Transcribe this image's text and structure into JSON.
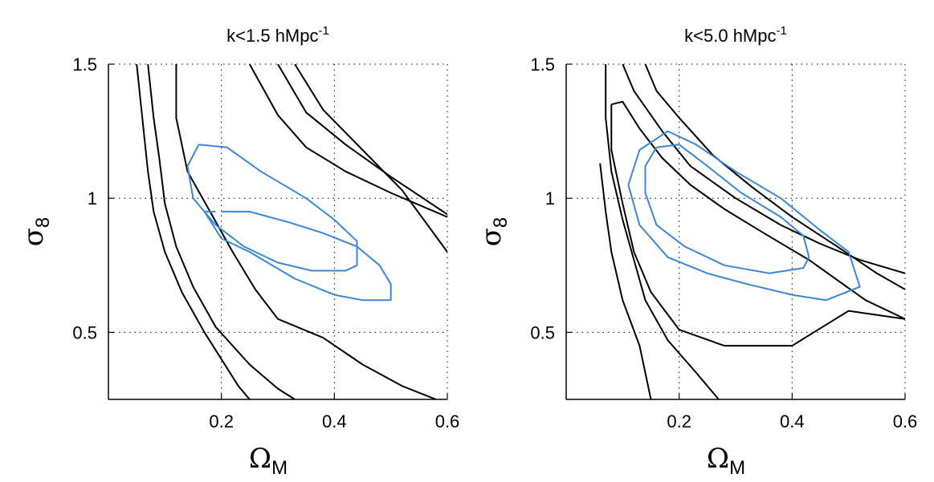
{
  "chart_data": [
    {
      "type": "contour",
      "title": "k<1.5 hMpc",
      "title_sup": "-1",
      "xlabel": "Ω",
      "xlabel_sub": "M",
      "ylabel": "σ",
      "ylabel_sub": "8",
      "xlim": [
        0.0,
        0.6
      ],
      "ylim": [
        0.25,
        1.5
      ],
      "xticks": [
        0.2,
        0.4,
        0.6
      ],
      "xtick_labels": [
        "0.2",
        "0.4",
        "0.6"
      ],
      "yticks": [
        0.5,
        1.0,
        1.5
      ],
      "ytick_labels": [
        "0.5",
        "1",
        "1.5"
      ],
      "grid": "dotted",
      "series": [
        {
          "name": "black-outer-left",
          "color": "#000000",
          "points": [
            [
              0.05,
              1.5
            ],
            [
              0.06,
              1.3
            ],
            [
              0.07,
              1.1
            ],
            [
              0.08,
              0.95
            ],
            [
              0.1,
              0.8
            ],
            [
              0.13,
              0.65
            ],
            [
              0.17,
              0.5
            ],
            [
              0.2,
              0.4
            ],
            [
              0.23,
              0.3
            ],
            [
              0.25,
              0.25
            ]
          ]
        },
        {
          "name": "black-inner-left",
          "color": "#000000",
          "points": [
            [
              0.07,
              1.5
            ],
            [
              0.08,
              1.3
            ],
            [
              0.09,
              1.15
            ],
            [
              0.1,
              0.98
            ],
            [
              0.12,
              0.82
            ],
            [
              0.15,
              0.67
            ],
            [
              0.19,
              0.52
            ],
            [
              0.25,
              0.38
            ],
            [
              0.3,
              0.29
            ],
            [
              0.33,
              0.25
            ]
          ]
        },
        {
          "name": "black-diagonal",
          "color": "#000000",
          "points": [
            [
              0.12,
              1.5
            ],
            [
              0.12,
              1.3
            ],
            [
              0.14,
              1.1
            ],
            [
              0.18,
              0.95
            ],
            [
              0.22,
              0.8
            ],
            [
              0.26,
              0.66
            ],
            [
              0.3,
              0.55
            ],
            [
              0.38,
              0.48
            ],
            [
              0.45,
              0.38
            ],
            [
              0.52,
              0.3
            ],
            [
              0.58,
              0.25
            ]
          ]
        },
        {
          "name": "black-upper-right-1",
          "color": "#000000",
          "points": [
            [
              0.25,
              1.5
            ],
            [
              0.3,
              1.31
            ],
            [
              0.35,
              1.19
            ],
            [
              0.42,
              1.1
            ],
            [
              0.5,
              1.02
            ],
            [
              0.6,
              0.93
            ]
          ]
        },
        {
          "name": "black-upper-right-2",
          "color": "#000000",
          "points": [
            [
              0.3,
              1.5
            ],
            [
              0.35,
              1.32
            ],
            [
              0.42,
              1.2
            ],
            [
              0.5,
              1.08
            ],
            [
              0.6,
              0.94
            ]
          ]
        },
        {
          "name": "black-upper-right-3",
          "color": "#000000",
          "points": [
            [
              0.33,
              1.5
            ],
            [
              0.38,
              1.33
            ],
            [
              0.45,
              1.18
            ],
            [
              0.52,
              1.03
            ],
            [
              0.6,
              0.8
            ]
          ]
        },
        {
          "name": "blue-outer",
          "color": "#3a86d8",
          "points": [
            [
              0.2,
              0.95
            ],
            [
              0.25,
              0.95
            ],
            [
              0.32,
              0.91
            ],
            [
              0.38,
              0.87
            ],
            [
              0.44,
              0.82
            ],
            [
              0.48,
              0.75
            ],
            [
              0.5,
              0.68
            ],
            [
              0.5,
              0.62
            ],
            [
              0.45,
              0.62
            ],
            [
              0.4,
              0.64
            ],
            [
              0.33,
              0.7
            ],
            [
              0.25,
              0.8
            ],
            [
              0.2,
              0.85
            ],
            [
              0.17,
              0.95
            ],
            [
              0.19,
              0.95
            ]
          ]
        }
      ]
    },
    {
      "type": "contour",
      "title": "k<5.0 hMpc",
      "title_sup": "-1",
      "xlabel": "Ω",
      "xlabel_sub": "M",
      "ylabel": "σ",
      "ylabel_sub": "8",
      "xlim": [
        0.0,
        0.6
      ],
      "ylim": [
        0.25,
        1.5
      ],
      "xticks": [
        0.2,
        0.4,
        0.6
      ],
      "xtick_labels": [
        "0.2",
        "0.4",
        "0.6"
      ],
      "yticks": [
        0.5,
        1.0,
        1.5
      ],
      "ytick_labels": [
        "0.5",
        "1",
        "1.5"
      ],
      "grid": "dotted",
      "series": [
        {
          "name": "black-left-short",
          "color": "#000000",
          "points": [
            [
              0.06,
              1.13
            ],
            [
              0.07,
              0.95
            ],
            [
              0.08,
              0.8
            ],
            [
              0.1,
              0.62
            ],
            [
              0.13,
              0.45
            ],
            [
              0.15,
              0.25
            ]
          ]
        },
        {
          "name": "black-left-long",
          "color": "#000000",
          "points": [
            [
              0.07,
              1.5
            ],
            [
              0.07,
              1.3
            ],
            [
              0.08,
              1.1
            ],
            [
              0.1,
              0.92
            ],
            [
              0.12,
              0.77
            ],
            [
              0.14,
              0.62
            ],
            [
              0.18,
              0.47
            ],
            [
              0.23,
              0.35
            ],
            [
              0.27,
              0.25
            ]
          ]
        },
        {
          "name": "black-loop",
          "color": "#000000",
          "points": [
            [
              0.08,
              1.35
            ],
            [
              0.1,
              1.36
            ],
            [
              0.13,
              1.26
            ],
            [
              0.17,
              1.15
            ],
            [
              0.22,
              1.05
            ],
            [
              0.28,
              0.96
            ],
            [
              0.35,
              0.87
            ],
            [
              0.43,
              0.77
            ],
            [
              0.53,
              0.62
            ],
            [
              0.6,
              0.55
            ],
            [
              0.5,
              0.58
            ],
            [
              0.4,
              0.45
            ],
            [
              0.28,
              0.45
            ],
            [
              0.2,
              0.51
            ],
            [
              0.15,
              0.65
            ],
            [
              0.12,
              0.8
            ],
            [
              0.1,
              0.98
            ],
            [
              0.08,
              1.18
            ],
            [
              0.08,
              1.35
            ]
          ]
        },
        {
          "name": "black-upper-right-1",
          "color": "#000000",
          "points": [
            [
              0.1,
              1.5
            ],
            [
              0.12,
              1.4
            ],
            [
              0.17,
              1.25
            ],
            [
              0.22,
              1.12
            ],
            [
              0.3,
              1.0
            ],
            [
              0.38,
              0.9
            ],
            [
              0.45,
              0.83
            ],
            [
              0.52,
              0.77
            ],
            [
              0.6,
              0.72
            ]
          ]
        },
        {
          "name": "black-upper-right-2",
          "color": "#000000",
          "points": [
            [
              0.14,
              1.5
            ],
            [
              0.16,
              1.4
            ],
            [
              0.2,
              1.3
            ],
            [
              0.26,
              1.16
            ],
            [
              0.33,
              1.04
            ],
            [
              0.4,
              0.93
            ],
            [
              0.48,
              0.82
            ],
            [
              0.55,
              0.72
            ],
            [
              0.6,
              0.66
            ]
          ]
        },
        {
          "name": "blue-outer",
          "color": "#3a86d8",
          "points": [
            [
              0.11,
              1.05
            ],
            [
              0.13,
              1.18
            ],
            [
              0.18,
              1.25
            ],
            [
              0.23,
              1.2
            ],
            [
              0.3,
              1.1
            ],
            [
              0.38,
              1.0
            ],
            [
              0.45,
              0.88
            ],
            [
              0.5,
              0.8
            ],
            [
              0.52,
              0.67
            ],
            [
              0.46,
              0.62
            ],
            [
              0.4,
              0.64
            ],
            [
              0.32,
              0.68
            ],
            [
              0.25,
              0.72
            ],
            [
              0.18,
              0.78
            ],
            [
              0.13,
              0.9
            ],
            [
              0.11,
              1.05
            ]
          ]
        }
      ]
    }
  ],
  "blue_inner": [
    [
      [
        0.16,
        1.2
      ],
      [
        0.21,
        1.19
      ],
      [
        0.27,
        1.1
      ],
      [
        0.35,
        1.0
      ],
      [
        0.4,
        0.92
      ],
      [
        0.44,
        0.84
      ],
      [
        0.44,
        0.75
      ],
      [
        0.42,
        0.73
      ],
      [
        0.36,
        0.73
      ],
      [
        0.3,
        0.76
      ],
      [
        0.24,
        0.82
      ],
      [
        0.19,
        0.9
      ],
      [
        0.15,
        1.0
      ],
      [
        0.14,
        1.12
      ],
      [
        0.16,
        1.2
      ]
    ],
    [
      [
        0.16,
        1.19
      ],
      [
        0.2,
        1.2
      ],
      [
        0.25,
        1.12
      ],
      [
        0.31,
        1.02
      ],
      [
        0.38,
        0.93
      ],
      [
        0.42,
        0.86
      ],
      [
        0.43,
        0.78
      ],
      [
        0.42,
        0.74
      ],
      [
        0.36,
        0.72
      ],
      [
        0.28,
        0.75
      ],
      [
        0.21,
        0.82
      ],
      [
        0.16,
        0.9
      ],
      [
        0.14,
        1.02
      ],
      [
        0.14,
        1.12
      ],
      [
        0.16,
        1.19
      ]
    ]
  ]
}
